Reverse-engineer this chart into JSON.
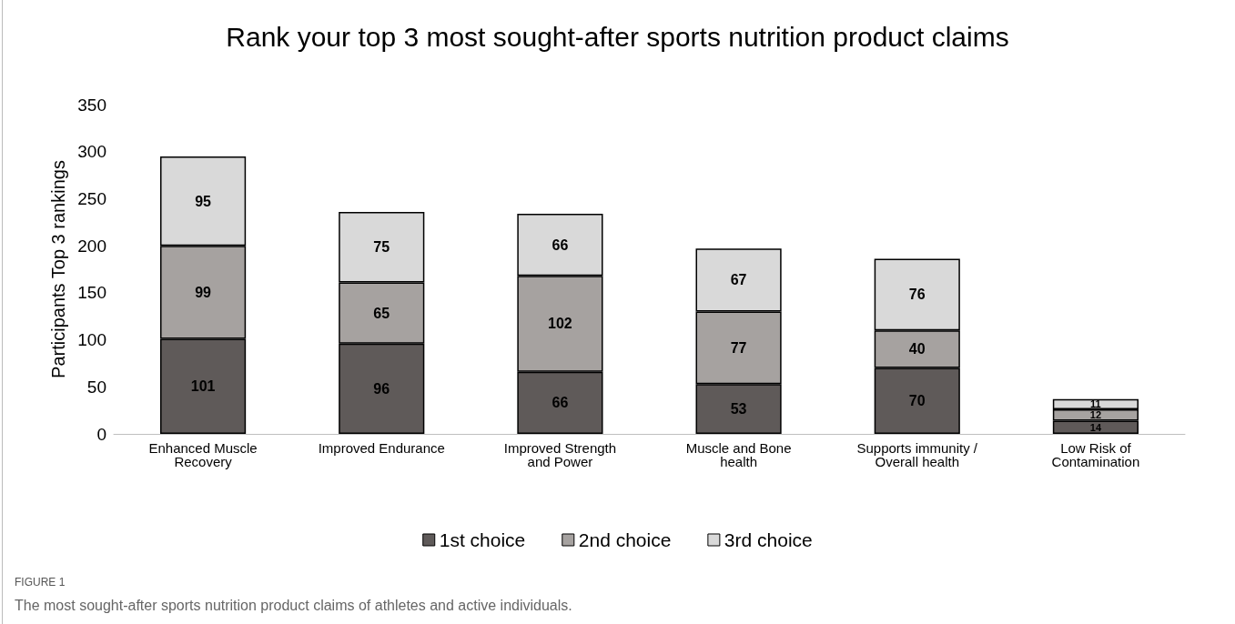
{
  "chart_data": {
    "type": "bar",
    "title": "Rank your top 3 most sought-after sports nutrition product claims",
    "ylabel": "Participants Top 3 rankings",
    "categories": [
      "Enhanced Muscle Recovery",
      "Improved Endurance",
      "Improved Strength and Power",
      "Muscle and Bone health",
      "Supports immunity / Overall health",
      "Low Risk of Contamination"
    ],
    "series": [
      {
        "name": "1st choice",
        "color": "#5f5a59",
        "values": [
          101,
          96,
          66,
          53,
          70,
          14
        ]
      },
      {
        "name": "2nd choice",
        "color": "#a6a2a0",
        "values": [
          99,
          65,
          102,
          77,
          40,
          12
        ]
      },
      {
        "name": "3rd choice",
        "color": "#d9d9d9",
        "values": [
          95,
          75,
          66,
          67,
          76,
          11
        ]
      }
    ],
    "stacked": true,
    "data_labels": true,
    "ylim": [
      0,
      350
    ],
    "yticks": [
      0,
      50,
      100,
      150,
      200,
      250,
      300,
      350
    ],
    "grid": false,
    "legend": "bottom",
    "annotations": [
      "FIGURE 1",
      "The most sought-after sports nutrition product claims of athletes and active individuals."
    ]
  }
}
